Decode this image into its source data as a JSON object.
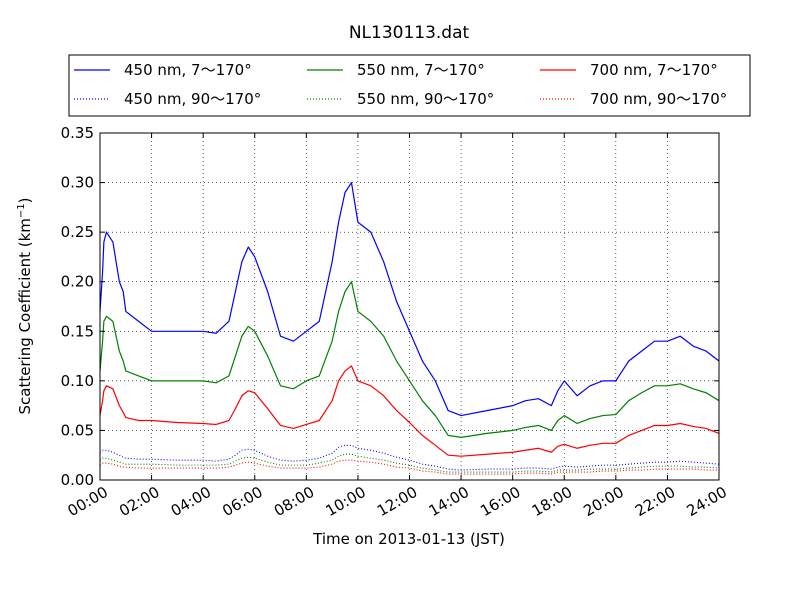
{
  "chart_data": {
    "type": "line",
    "title": "NL130113.dat",
    "xlabel": "Time on 2013-01-13 (JST)",
    "ylabel": "Scattering Coefficient (km",
    "ylabel_exponent": "−1",
    "ylabel_suffix": ")",
    "xlim": [
      0,
      24
    ],
    "ylim": [
      0,
      0.35
    ],
    "x_unit": "hours",
    "x_ticks": [
      0,
      2,
      4,
      6,
      8,
      10,
      12,
      14,
      16,
      18,
      20,
      22,
      24
    ],
    "x_tick_labels": [
      "00:00",
      "02:00",
      "04:00",
      "06:00",
      "08:00",
      "10:00",
      "12:00",
      "14:00",
      "16:00",
      "18:00",
      "20:00",
      "22:00",
      "24:00"
    ],
    "y_ticks": [
      0,
      0.05,
      0.1,
      0.15,
      0.2,
      0.25,
      0.3,
      0.35
    ],
    "y_tick_labels": [
      "0.00",
      "0.05",
      "0.10",
      "0.15",
      "0.20",
      "0.25",
      "0.30",
      "0.35"
    ],
    "grid": true,
    "legend_placement": "top, outside plot, 3 columns",
    "x": [
      0,
      0.1,
      0.15,
      0.25,
      0.5,
      0.75,
      0.9,
      1,
      1.5,
      2,
      3,
      4,
      4.5,
      5,
      5.25,
      5.5,
      5.75,
      6,
      6.5,
      7,
      7.5,
      8,
      8.5,
      9,
      9.25,
      9.5,
      9.75,
      10,
      10.5,
      11,
      11.5,
      12,
      12.5,
      13,
      13.5,
      14,
      15,
      16,
      16.5,
      17,
      17.5,
      17.75,
      18,
      18.5,
      19,
      19.5,
      20,
      20.5,
      21,
      21.5,
      22,
      22.5,
      23,
      23.5,
      24
    ],
    "series": [
      {
        "name": "450 nm, 7～170°",
        "color": "#0000ff",
        "style": "solid",
        "values": [
          0.17,
          0.21,
          0.24,
          0.25,
          0.24,
          0.2,
          0.19,
          0.17,
          0.16,
          0.15,
          0.15,
          0.15,
          0.148,
          0.16,
          0.19,
          0.22,
          0.235,
          0.225,
          0.19,
          0.145,
          0.14,
          0.15,
          0.16,
          0.22,
          0.26,
          0.29,
          0.3,
          0.26,
          0.25,
          0.22,
          0.18,
          0.15,
          0.12,
          0.1,
          0.07,
          0.065,
          0.07,
          0.075,
          0.08,
          0.082,
          0.075,
          0.09,
          0.1,
          0.085,
          0.095,
          0.1,
          0.1,
          0.12,
          0.13,
          0.14,
          0.14,
          0.145,
          0.135,
          0.13,
          0.12
        ]
      },
      {
        "name": "450 nm, 90～170°",
        "color": "#0000ff",
        "style": "dotted",
        "values": [
          0.028,
          0.03,
          0.03,
          0.03,
          0.028,
          0.025,
          0.023,
          0.022,
          0.021,
          0.021,
          0.02,
          0.02,
          0.019,
          0.021,
          0.025,
          0.03,
          0.031,
          0.03,
          0.024,
          0.02,
          0.019,
          0.02,
          0.022,
          0.027,
          0.033,
          0.035,
          0.035,
          0.032,
          0.03,
          0.027,
          0.023,
          0.02,
          0.016,
          0.014,
          0.011,
          0.01,
          0.011,
          0.011,
          0.012,
          0.012,
          0.011,
          0.013,
          0.014,
          0.013,
          0.014,
          0.015,
          0.015,
          0.016,
          0.017,
          0.018,
          0.018,
          0.019,
          0.018,
          0.017,
          0.016
        ]
      },
      {
        "name": "550 nm, 7～170°",
        "color": "#008000",
        "style": "solid",
        "values": [
          0.11,
          0.14,
          0.16,
          0.165,
          0.16,
          0.13,
          0.12,
          0.11,
          0.105,
          0.1,
          0.1,
          0.1,
          0.098,
          0.105,
          0.125,
          0.145,
          0.155,
          0.15,
          0.125,
          0.095,
          0.092,
          0.1,
          0.105,
          0.14,
          0.17,
          0.19,
          0.2,
          0.17,
          0.16,
          0.145,
          0.12,
          0.1,
          0.08,
          0.065,
          0.045,
          0.043,
          0.047,
          0.05,
          0.053,
          0.055,
          0.05,
          0.06,
          0.065,
          0.057,
          0.062,
          0.065,
          0.066,
          0.08,
          0.088,
          0.095,
          0.095,
          0.097,
          0.092,
          0.088,
          0.08
        ]
      },
      {
        "name": "550 nm, 90～170°",
        "color": "#008000",
        "style": "dotted",
        "values": [
          0.02,
          0.022,
          0.022,
          0.022,
          0.02,
          0.018,
          0.017,
          0.016,
          0.016,
          0.016,
          0.015,
          0.015,
          0.015,
          0.016,
          0.019,
          0.022,
          0.023,
          0.022,
          0.018,
          0.015,
          0.015,
          0.015,
          0.017,
          0.02,
          0.024,
          0.026,
          0.026,
          0.024,
          0.022,
          0.02,
          0.017,
          0.015,
          0.012,
          0.01,
          0.008,
          0.008,
          0.008,
          0.008,
          0.009,
          0.009,
          0.008,
          0.01,
          0.01,
          0.01,
          0.011,
          0.011,
          0.011,
          0.012,
          0.013,
          0.014,
          0.014,
          0.014,
          0.013,
          0.013,
          0.012
        ]
      },
      {
        "name": "700 nm, 7～170°",
        "color": "#ff0000",
        "style": "solid",
        "values": [
          0.065,
          0.08,
          0.09,
          0.095,
          0.092,
          0.075,
          0.068,
          0.063,
          0.06,
          0.06,
          0.058,
          0.057,
          0.056,
          0.06,
          0.072,
          0.085,
          0.09,
          0.088,
          0.072,
          0.055,
          0.052,
          0.056,
          0.06,
          0.08,
          0.1,
          0.11,
          0.115,
          0.1,
          0.095,
          0.085,
          0.07,
          0.058,
          0.045,
          0.035,
          0.025,
          0.024,
          0.026,
          0.028,
          0.03,
          0.032,
          0.028,
          0.034,
          0.036,
          0.032,
          0.035,
          0.037,
          0.037,
          0.045,
          0.05,
          0.055,
          0.055,
          0.057,
          0.054,
          0.052,
          0.047
        ]
      },
      {
        "name": "700 nm, 90～170°",
        "color": "#ff0000",
        "style": "dotted",
        "values": [
          0.015,
          0.017,
          0.017,
          0.017,
          0.016,
          0.014,
          0.013,
          0.013,
          0.012,
          0.012,
          0.012,
          0.012,
          0.012,
          0.013,
          0.015,
          0.017,
          0.018,
          0.017,
          0.014,
          0.012,
          0.012,
          0.012,
          0.013,
          0.016,
          0.019,
          0.02,
          0.02,
          0.019,
          0.018,
          0.016,
          0.013,
          0.012,
          0.009,
          0.008,
          0.006,
          0.006,
          0.006,
          0.006,
          0.007,
          0.007,
          0.006,
          0.008,
          0.008,
          0.008,
          0.008,
          0.009,
          0.009,
          0.01,
          0.01,
          0.011,
          0.011,
          0.011,
          0.011,
          0.01,
          0.01
        ]
      }
    ]
  }
}
